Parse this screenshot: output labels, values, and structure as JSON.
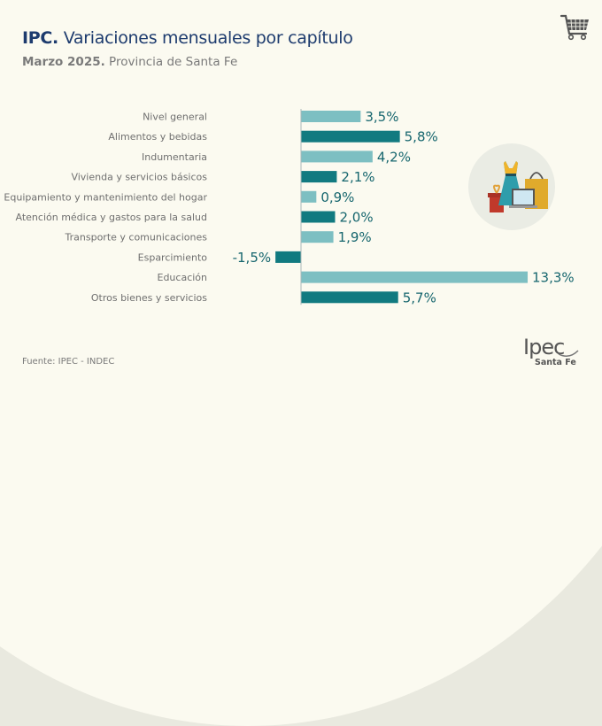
{
  "header": {
    "title_bold": "IPC.",
    "title_rest": " Variaciones mensuales por capítulo",
    "subtitle_bold": "Marzo 2025.",
    "subtitle_rest": " Provincia de Santa Fe"
  },
  "icons": {
    "cart": "shopping-cart-icon",
    "illustration": "shopping-illustration"
  },
  "footer": {
    "source": "Fuente: IPEC - INDEC",
    "logo_text": "Ipec",
    "logo_sub": "Santa Fe"
  },
  "colors": {
    "light_bar": "#7dbfc2",
    "dark_bar": "#117a80",
    "value_text": "#16666e",
    "title": "#1d3b6e"
  },
  "chart_data": {
    "type": "bar",
    "orientation": "horizontal",
    "title": "IPC. Variaciones mensuales por capítulo",
    "subtitle": "Marzo 2025. Provincia de Santa Fe",
    "xlabel": "",
    "ylabel": "",
    "unit": "%",
    "grid": false,
    "categories": [
      "Nivel general",
      "Alimentos y bebidas",
      "Indumentaria",
      "Vivienda y servicios básicos",
      "Equipamiento y mantenimiento del hogar",
      "Atención médica y gastos para la salud",
      "Transporte y comunicaciones",
      "Esparcimiento",
      "Educación",
      "Otros bienes y servicios"
    ],
    "values": [
      3.5,
      5.8,
      4.2,
      2.1,
      0.9,
      2.0,
      1.9,
      -1.5,
      13.3,
      5.7
    ],
    "value_labels": [
      "3,5%",
      "5,8%",
      "4,2%",
      "2,1%",
      "0,9%",
      "2,0%",
      "1,9%",
      "-1,5%",
      "13,3%",
      "5,7%"
    ],
    "bar_shades": [
      "light",
      "dark",
      "light",
      "dark",
      "light",
      "dark",
      "light",
      "dark",
      "light",
      "dark"
    ],
    "xlim": [
      -1.5,
      13.3
    ]
  }
}
